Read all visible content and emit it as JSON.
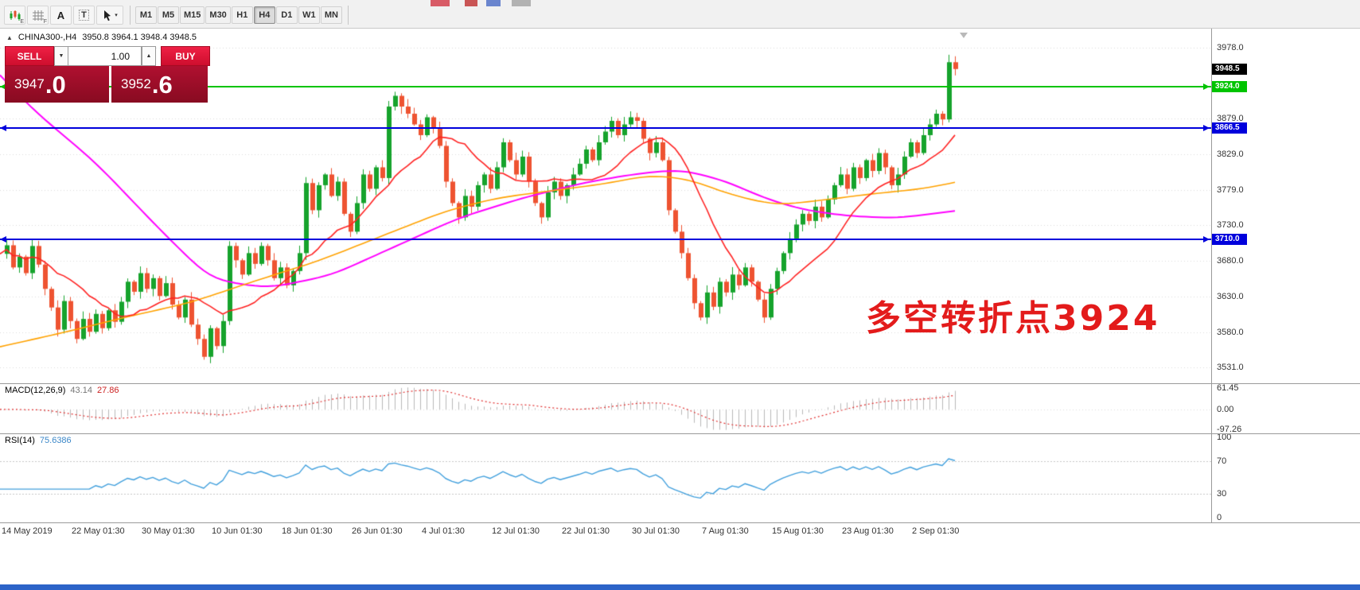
{
  "toolbar": {
    "icon_a_label": "A",
    "icon_t_label": "T",
    "cursor_dropdown_glyph": "▾",
    "timeframes": [
      "M1",
      "M5",
      "M15",
      "M30",
      "H1",
      "H4",
      "D1",
      "W1",
      "MN"
    ],
    "active_timeframe": "H4"
  },
  "chart_header": {
    "collapse_glyph": "▲",
    "symbol_period": "CHINA300-,H4",
    "ohlc": "3950.8 3964.1 3948.4 3948.5"
  },
  "trade_panel": {
    "sell_label": "SELL",
    "buy_label": "BUY",
    "volume": "1.00",
    "dropdown_glyph": "▼",
    "spin_up_glyph": "▲",
    "sell_price_main": "3947",
    "sell_price_big": ".0",
    "buy_price_main": "3952",
    "buy_price_big": ".6"
  },
  "annotation": {
    "text": "多空转折点3924",
    "color": "#e31b1b"
  },
  "macd": {
    "header_label": "MACD(12,26,9)",
    "value_main": "43.14",
    "value_signal": "27.86",
    "axis_labels": [
      "61.45",
      "0.00",
      "-97.26"
    ]
  },
  "rsi": {
    "header_label": "RSI(14)",
    "value": "75.6386",
    "axis_labels": [
      "100",
      "70",
      "30",
      "0"
    ],
    "axis_values": [
      100,
      70,
      30,
      0
    ],
    "levels": [
      70,
      30
    ]
  },
  "time_axis": {
    "labels": [
      "14 May 2019",
      "22 May 01:30",
      "30 May 01:30",
      "10 Jun 01:30",
      "18 Jun 01:30",
      "26 Jun 01:30",
      "4 Jul 01:30",
      "12 Jul 01:30",
      "22 Jul 01:30",
      "30 Jul 01:30",
      "7 Aug 01:30",
      "15 Aug 01:30",
      "23 Aug 01:30",
      "2 Sep 01:30"
    ]
  },
  "chart_data": {
    "type": "candlestick",
    "symbol": "CHINA300-",
    "timeframe": "H4",
    "current_ohlc": {
      "open": 3950.8,
      "high": 3964.1,
      "low": 3948.4,
      "close": 3948.5
    },
    "y_range": [
      3509,
      4005
    ],
    "gridline_prices": [
      3978.0,
      3879.0,
      3829.0,
      3779.0,
      3730.0,
      3680.0,
      3630.0,
      3580.0,
      3531.0
    ],
    "closes": [
      3690,
      3702,
      3671,
      3686,
      3663,
      3701,
      3675,
      3641,
      3615,
      3584,
      3624,
      3596,
      3571,
      3599,
      3581,
      3606,
      3586,
      3611,
      3595,
      3623,
      3651,
      3637,
      3663,
      3641,
      3656,
      3631,
      3649,
      3619,
      3601,
      3626,
      3591,
      3571,
      3546,
      3586,
      3561,
      3596,
      3701,
      3681,
      3661,
      3691,
      3676,
      3701,
      3681,
      3656,
      3671,
      3646,
      3666,
      3691,
      3789,
      3751,
      3786,
      3801,
      3771,
      3791,
      3746,
      3721,
      3761,
      3801,
      3781,
      3811,
      3796,
      3896,
      3911,
      3896,
      3886,
      3871,
      3856,
      3881,
      3866,
      3841,
      3791,
      3761,
      3741,
      3771,
      3756,
      3786,
      3801,
      3781,
      3811,
      3846,
      3821,
      3801,
      3826,
      3791,
      3761,
      3741,
      3776,
      3791,
      3771,
      3786,
      3801,
      3816,
      3836,
      3821,
      3846,
      3861,
      3876,
      3856,
      3871,
      3881,
      3876,
      3851,
      3831,
      3846,
      3821,
      3751,
      3721,
      3691,
      3656,
      3621,
      3601,
      3636,
      3616,
      3651,
      3636,
      3661,
      3646,
      3671,
      3651,
      3626,
      3601,
      3641,
      3666,
      3691,
      3711,
      3731,
      3746,
      3736,
      3756,
      3741,
      3766,
      3786,
      3801,
      3781,
      3811,
      3796,
      3821,
      3806,
      3831,
      3811,
      3786,
      3801,
      3826,
      3846,
      3831,
      3856,
      3871,
      3886,
      3878,
      3958,
      3948.5
    ],
    "levels": [
      {
        "price": 3924.0,
        "label": "3924.0",
        "color": "#00c400"
      },
      {
        "price": 3866.5,
        "label": "3866.5",
        "color": "#0000dc"
      },
      {
        "price": 3710.0,
        "label": "3710.0",
        "color": "#0000dc"
      }
    ],
    "current_price_tag": {
      "price": 3948.5,
      "label": "3948.5",
      "color": "#000000"
    },
    "moving_averages": {
      "magenta": {
        "color": "#ff00ff",
        "anchors": [
          [
            0,
            3940
          ],
          [
            5,
            3893
          ],
          [
            15,
            3818
          ],
          [
            25,
            3725
          ],
          [
            33,
            3655
          ],
          [
            42,
            3642
          ],
          [
            52,
            3660
          ],
          [
            62,
            3700
          ],
          [
            72,
            3740
          ],
          [
            82,
            3768
          ],
          [
            92,
            3790
          ],
          [
            100,
            3802
          ],
          [
            107,
            3808
          ],
          [
            114,
            3792
          ],
          [
            120,
            3768
          ],
          [
            126,
            3752
          ],
          [
            133,
            3743
          ],
          [
            141,
            3740
          ],
          [
            150,
            3750
          ]
        ]
      },
      "orange": {
        "color": "#ffa200",
        "anchors": [
          [
            0,
            3560
          ],
          [
            10,
            3580
          ],
          [
            20,
            3602
          ],
          [
            30,
            3622
          ],
          [
            40,
            3652
          ],
          [
            50,
            3680
          ],
          [
            60,
            3715
          ],
          [
            70,
            3750
          ],
          [
            78,
            3768
          ],
          [
            88,
            3780
          ],
          [
            95,
            3788
          ],
          [
            102,
            3800
          ],
          [
            108,
            3795
          ],
          [
            115,
            3772
          ],
          [
            122,
            3758
          ],
          [
            130,
            3766
          ],
          [
            137,
            3774
          ],
          [
            145,
            3781
          ],
          [
            150,
            3790
          ]
        ]
      },
      "red": {
        "color": "#ff2222",
        "period": 13
      }
    },
    "up_color": "#16a32c",
    "down_color": "#ee5331",
    "macd_colors": {
      "histogram": "#b8b8b8",
      "signal": "#e03030"
    },
    "rsi_color": "#42a0dd"
  }
}
